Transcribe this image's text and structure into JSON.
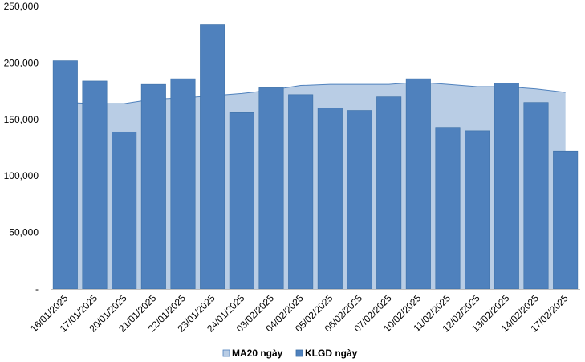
{
  "chart_data": {
    "type": "bar",
    "categories": [
      "16/01/2025",
      "17/01/2025",
      "20/01/2025",
      "21/01/2025",
      "22/01/2025",
      "23/01/2025",
      "24/01/2025",
      "03/02/2025",
      "04/02/2025",
      "05/02/2025",
      "06/02/2025",
      "07/02/2025",
      "10/02/2025",
      "11/02/2025",
      "12/02/2025",
      "13/02/2025",
      "14/02/2025",
      "17/02/2025"
    ],
    "series": [
      {
        "name": "MA20 ngày",
        "type": "area",
        "values": [
          165000,
          164000,
          164000,
          168000,
          169000,
          171000,
          173000,
          176000,
          180000,
          181000,
          181000,
          181000,
          183000,
          181000,
          179000,
          179000,
          177000,
          174000
        ]
      },
      {
        "name": "KLGD ngày",
        "type": "bar",
        "values": [
          202000,
          184000,
          139000,
          181000,
          186000,
          234000,
          156000,
          178000,
          172000,
          160000,
          158000,
          170000,
          186000,
          143000,
          140000,
          182000,
          165000,
          122000
        ]
      }
    ],
    "y_ticks": [
      "-",
      "50,000",
      "100,000",
      "150,000",
      "200,000",
      "250,000"
    ],
    "ylim": [
      0,
      250000
    ],
    "legend": [
      "MA20 ngày",
      "KLGD ngày"
    ],
    "legend_position": "bottom",
    "grid": false,
    "colors": {
      "bar": "#4F81BD",
      "bar_stroke": "#3A6EA5",
      "area_fill": "#B9CDE5",
      "area_stroke": "#4F81BD",
      "axis": "#BFBFBF"
    }
  }
}
